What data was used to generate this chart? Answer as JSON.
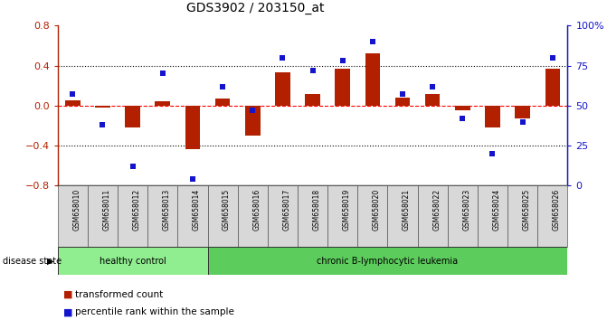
{
  "title": "GDS3902 / 203150_at",
  "samples": [
    "GSM658010",
    "GSM658011",
    "GSM658012",
    "GSM658013",
    "GSM658014",
    "GSM658015",
    "GSM658016",
    "GSM658017",
    "GSM658018",
    "GSM658019",
    "GSM658020",
    "GSM658021",
    "GSM658022",
    "GSM658023",
    "GSM658024",
    "GSM658025",
    "GSM658026"
  ],
  "red_values": [
    0.05,
    -0.02,
    -0.22,
    0.04,
    -0.44,
    0.07,
    -0.3,
    0.33,
    0.12,
    0.37,
    0.52,
    0.08,
    0.12,
    -0.05,
    -0.22,
    -0.13,
    0.37
  ],
  "blue_pct": [
    57,
    38,
    12,
    70,
    4,
    62,
    47,
    80,
    72,
    78,
    90,
    57,
    62,
    42,
    20,
    40,
    80
  ],
  "healthy_count": 5,
  "ylim_left": [
    -0.8,
    0.8
  ],
  "ylim_right": [
    0,
    100
  ],
  "yticks_left": [
    -0.8,
    -0.4,
    0.0,
    0.4,
    0.8
  ],
  "yticks_right": [
    0,
    25,
    50,
    75,
    100
  ],
  "ytick_labels_right": [
    "0",
    "25",
    "50",
    "75",
    "100%"
  ],
  "red_color": "#B22000",
  "blue_color": "#1414CC",
  "healthy_facecolor": "#90EE90",
  "leukemia_facecolor": "#5CCD5C",
  "label_red": "transformed count",
  "label_blue": "percentile rank within the sample",
  "disease_label": "disease state",
  "healthy_label": "healthy control",
  "leukemia_label": "chronic B-lymphocytic leukemia"
}
